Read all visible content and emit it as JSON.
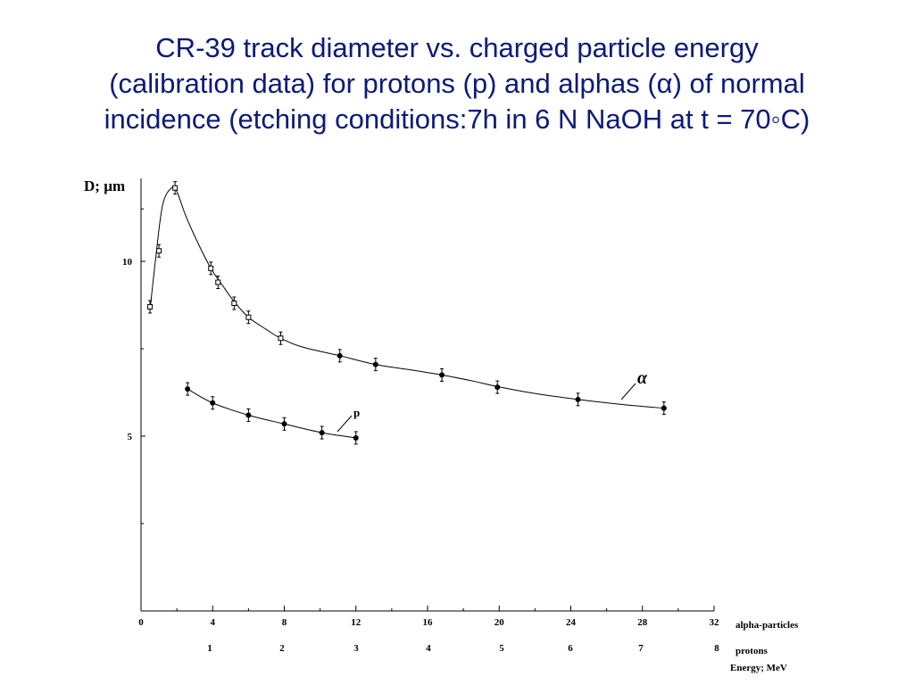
{
  "slide": {
    "title_lines": [
      "CR-39 track diameter vs. charged particle energy",
      "(calibration data) for protons (p) and alphas (α) of normal",
      "incidence (etching conditions:7h in 6 N NaOH at t = 70◦C)"
    ],
    "title_color": "#0b1a7a"
  },
  "chart_data": {
    "type": "scatter",
    "ylabel": "D; µm",
    "xlabel": "Energy; MeV",
    "y_ticks": [
      "10",
      "5"
    ],
    "y_tick_values": [
      10,
      5
    ],
    "alpha_axis": {
      "name": "alpha-particles",
      "ticks": [
        "0",
        "4",
        "8",
        "12",
        "16",
        "20",
        "24",
        "28",
        "32"
      ],
      "tick_values": [
        0,
        4,
        8,
        12,
        16,
        20,
        24,
        28,
        32
      ],
      "range": [
        0,
        32
      ]
    },
    "proton_axis": {
      "name": "protons",
      "ticks": [
        "1",
        "2",
        "3",
        "4",
        "5",
        "6",
        "7",
        "8"
      ],
      "tick_values": [
        1,
        2,
        3,
        4,
        5,
        6,
        7,
        8
      ]
    },
    "ylim": [
      0,
      12.2
    ],
    "series": [
      {
        "name": "α",
        "marker": "square",
        "x": [
          0.5,
          1.0,
          1.9,
          3.9,
          4.3,
          5.2,
          6.0,
          7.8
        ],
        "y": [
          8.7,
          10.3,
          12.1,
          9.8,
          9.4,
          8.8,
          8.4,
          7.8
        ]
      },
      {
        "name": "α",
        "marker": "circle",
        "x": [
          11.1,
          13.1,
          16.8,
          19.9,
          24.4,
          29.2
        ],
        "y": [
          7.3,
          7.05,
          6.75,
          6.4,
          6.05,
          5.8
        ]
      },
      {
        "name": "p",
        "marker": "circle",
        "x": [
          2.6,
          4.0,
          6.0,
          8.0,
          10.1,
          12.0
        ],
        "y": [
          6.35,
          5.95,
          5.6,
          5.35,
          5.1,
          4.95
        ]
      }
    ],
    "curves": {
      "alpha": {
        "x": [
          0.5,
          0.8,
          1.2,
          1.7,
          2.0,
          2.5,
          3.2,
          3.9,
          4.5,
          5.2,
          6.0,
          7.0,
          7.8,
          9.0,
          11.1,
          13.1,
          15.0,
          16.8,
          18.5,
          19.9,
          22.0,
          24.4,
          27.0,
          29.2
        ],
        "y": [
          8.6,
          10.0,
          11.6,
          12.1,
          12.0,
          11.3,
          10.5,
          9.8,
          9.35,
          8.85,
          8.4,
          8.05,
          7.8,
          7.55,
          7.3,
          7.05,
          6.9,
          6.75,
          6.58,
          6.42,
          6.22,
          6.05,
          5.9,
          5.8
        ]
      },
      "protons": {
        "x": [
          2.6,
          4.0,
          6.0,
          8.0,
          10.1,
          12.0
        ],
        "y": [
          6.35,
          5.95,
          5.6,
          5.35,
          5.1,
          4.95
        ]
      }
    },
    "curve_labels": {
      "alpha": "α",
      "protons": "p"
    }
  }
}
